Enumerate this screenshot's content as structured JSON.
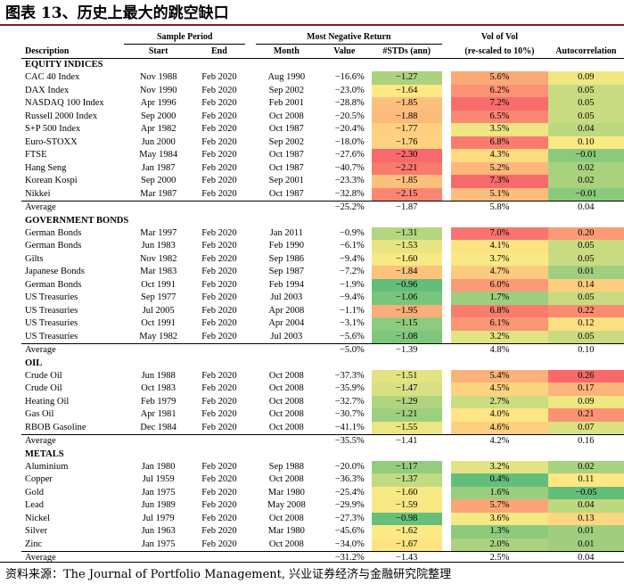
{
  "title": "图表 13、历史上最大的跳空缺口",
  "source": "资料来源：The Journal of Portfolio Management, 兴业证券经济与金融研究院整理",
  "headers": {
    "sample_period": "Sample Period",
    "most_negative_return": "Most Negative Return",
    "vol_of_vol": "Vol of Vol",
    "vol_sub": "(re-scaled to 10%)",
    "description": "Description",
    "start": "Start",
    "end": "End",
    "month": "Month",
    "value": "Value",
    "stds": "#STDs (ann)",
    "autocorrelation": "Autocorrelation"
  },
  "sections": [
    {
      "name": "EQUITY INDICES",
      "rows": [
        {
          "desc": "CAC 40 Index",
          "start": "Nov 1988",
          "end": "Feb 2020",
          "month": "Aug 1990",
          "value": "−16.6%",
          "stds": "−1.27",
          "vol": "5.6%",
          "auto": "0.09"
        },
        {
          "desc": "DAX Index",
          "start": "Nov 1990",
          "end": "Feb 2020",
          "month": "Sep 2002",
          "value": "−23.0%",
          "stds": "−1.64",
          "vol": "6.2%",
          "auto": "0.05"
        },
        {
          "desc": "NASDAQ 100 Index",
          "start": "Apr 1996",
          "end": "Feb 2020",
          "month": "Feb 2001",
          "value": "−28.8%",
          "stds": "−1.85",
          "vol": "7.2%",
          "auto": "0.05"
        },
        {
          "desc": "Russell 2000 Index",
          "start": "Sep 2000",
          "end": "Feb 2020",
          "month": "Oct 2008",
          "value": "−20.5%",
          "stds": "−1.88",
          "vol": "6.5%",
          "auto": "0.05"
        },
        {
          "desc": "S+P 500 Index",
          "start": "Apr 1982",
          "end": "Feb 2020",
          "month": "Oct 1987",
          "value": "−20.4%",
          "stds": "−1.77",
          "vol": "3.5%",
          "auto": "0.04"
        },
        {
          "desc": "Euro-STOXX",
          "start": "Jun 2000",
          "end": "Feb 2020",
          "month": "Sep 2002",
          "value": "−18.0%",
          "stds": "−1.76",
          "vol": "6.8%",
          "auto": "0.10"
        },
        {
          "desc": "FTSE",
          "start": "May 1984",
          "end": "Feb 2020",
          "month": "Oct 1987",
          "value": "−27.6%",
          "stds": "−2.30",
          "vol": "4.3%",
          "auto": "−0.01"
        },
        {
          "desc": "Hang Seng",
          "start": "Jan 1987",
          "end": "Feb 2020",
          "month": "Oct 1987",
          "value": "−40.7%",
          "stds": "−2.21",
          "vol": "5.2%",
          "auto": "0.02"
        },
        {
          "desc": "Korean Kospi",
          "start": "Sep 2000",
          "end": "Feb 2020",
          "month": "Sep 2001",
          "value": "−23.3%",
          "stds": "−1.85",
          "vol": "7.3%",
          "auto": "0.02"
        },
        {
          "desc": "Nikkei",
          "start": "Mar 1987",
          "end": "Feb 2020",
          "month": "Oct 1987",
          "value": "−32.8%",
          "stds": "−2.15",
          "vol": "5.1%",
          "auto": "−0.01"
        }
      ],
      "average": {
        "label": "Average",
        "value": "−25.2%",
        "stds": "−1.87",
        "vol": "5.8%",
        "auto": "0.04"
      }
    },
    {
      "name": "GOVERNMENT BONDS",
      "rows": [
        {
          "desc": "German Bonds",
          "start": "Mar 1997",
          "end": "Feb 2020",
          "month": "Jan 2011",
          "value": "−0.9%",
          "stds": "−1.31",
          "vol": "7.0%",
          "auto": "0.20"
        },
        {
          "desc": "German Bonds",
          "start": "Jun 1983",
          "end": "Feb 2020",
          "month": "Feb 1990",
          "value": "−6.1%",
          "stds": "−1.53",
          "vol": "4.1%",
          "auto": "0.05"
        },
        {
          "desc": "Gilts",
          "start": "Nov 1982",
          "end": "Feb 2020",
          "month": "Sep 1986",
          "value": "−9.4%",
          "stds": "−1.60",
          "vol": "3.7%",
          "auto": "0.05"
        },
        {
          "desc": "Japanese Bonds",
          "start": "Mar 1983",
          "end": "Feb 2020",
          "month": "Sep 1987",
          "value": "−7.2%",
          "stds": "−1.84",
          "vol": "4.7%",
          "auto": "0.01"
        },
        {
          "desc": "German Bonds",
          "start": "Oct 1991",
          "end": "Feb 2020",
          "month": "Feb 1994",
          "value": "−1.9%",
          "stds": "−0.96",
          "vol": "6.0%",
          "auto": "0.14"
        },
        {
          "desc": "US Treasuries",
          "start": "Sep 1977",
          "end": "Feb 2020",
          "month": "Jul 2003",
          "value": "−9.4%",
          "stds": "−1.06",
          "vol": "1.7%",
          "auto": "0.05"
        },
        {
          "desc": "US Treasuries",
          "start": "Jul 2005",
          "end": "Feb 2020",
          "month": "Apr 2008",
          "value": "−1.1%",
          "stds": "−1.95",
          "vol": "6.8%",
          "auto": "0.22"
        },
        {
          "desc": "US Treasuries",
          "start": "Oct 1991",
          "end": "Feb 2020",
          "month": "Apr 2004",
          "value": "−3.1%",
          "stds": "−1.15",
          "vol": "6.1%",
          "auto": "0.12"
        },
        {
          "desc": "US Treasuries",
          "start": "May 1982",
          "end": "Feb 2020",
          "month": "Jul 2003",
          "value": "−5.6%",
          "stds": "−1.08",
          "vol": "3.2%",
          "auto": "0.05"
        }
      ],
      "average": {
        "label": "Average",
        "value": "−5.0%",
        "stds": "−1.39",
        "vol": "4.8%",
        "auto": "0.10"
      }
    },
    {
      "name": "OIL",
      "rows": [
        {
          "desc": "Crude Oil",
          "start": "Jun 1988",
          "end": "Feb 2020",
          "month": "Oct 2008",
          "value": "−37.3%",
          "stds": "−1.51",
          "vol": "5.4%",
          "auto": "0.26"
        },
        {
          "desc": "Crude Oil",
          "start": "Oct 1983",
          "end": "Feb 2020",
          "month": "Oct 2008",
          "value": "−35.9%",
          "stds": "−1.47",
          "vol": "4.5%",
          "auto": "0.17"
        },
        {
          "desc": "Heating Oil",
          "start": "Feb 1979",
          "end": "Feb 2020",
          "month": "Oct 2008",
          "value": "−32.7%",
          "stds": "−1.29",
          "vol": "2.7%",
          "auto": "0.09"
        },
        {
          "desc": "Gas Oil",
          "start": "Apr 1981",
          "end": "Feb 2020",
          "month": "Oct 2008",
          "value": "−30.7%",
          "stds": "−1.21",
          "vol": "4.0%",
          "auto": "0.21"
        },
        {
          "desc": "RBOB Gasoline",
          "start": "Dec 1984",
          "end": "Feb 2020",
          "month": "Oct 2008",
          "value": "−41.1%",
          "stds": "−1.55",
          "vol": "4.6%",
          "auto": "0.07"
        }
      ],
      "average": {
        "label": "Average",
        "value": "−35.5%",
        "stds": "−1.41",
        "vol": "4.2%",
        "auto": "0.16"
      }
    },
    {
      "name": "METALS",
      "rows": [
        {
          "desc": "Aluminium",
          "start": "Jan 1980",
          "end": "Feb 2020",
          "month": "Sep 1988",
          "value": "−20.0%",
          "stds": "−1.17",
          "vol": "3.2%",
          "auto": "0.02"
        },
        {
          "desc": "Copper",
          "start": "Jul 1959",
          "end": "Feb 2020",
          "month": "Oct 2008",
          "value": "−36.3%",
          "stds": "−1.37",
          "vol": "0.4%",
          "auto": "0.11"
        },
        {
          "desc": "Gold",
          "start": "Jan 1975",
          "end": "Feb 2020",
          "month": "Mar 1980",
          "value": "−25.4%",
          "stds": "−1.60",
          "vol": "1.6%",
          "auto": "−0.05"
        },
        {
          "desc": "Lead",
          "start": "Jun 1989",
          "end": "Feb 2020",
          "month": "May 2008",
          "value": "−29.9%",
          "stds": "−1.59",
          "vol": "5.7%",
          "auto": "0.04"
        },
        {
          "desc": "Nickel",
          "start": "Jul 1979",
          "end": "Feb 2020",
          "month": "Oct 2008",
          "value": "−27.3%",
          "stds": "−0.98",
          "vol": "3.6%",
          "auto": "0.13"
        },
        {
          "desc": "Silver",
          "start": "Jun 1963",
          "end": "Feb 2020",
          "month": "Mar 1980",
          "value": "−45.6%",
          "stds": "−1.62",
          "vol": "1.3%",
          "auto": "0.01"
        },
        {
          "desc": "Zinc",
          "start": "Jan 1975",
          "end": "Feb 2020",
          "month": "Oct 2008",
          "value": "−34.0%",
          "stds": "−1.67",
          "vol": "2.0%",
          "auto": "0.01"
        }
      ],
      "average": {
        "label": "Average",
        "value": "−31.2%",
        "stds": "−1.43",
        "vol": "2.5%",
        "auto": "0.04"
      }
    }
  ]
}
